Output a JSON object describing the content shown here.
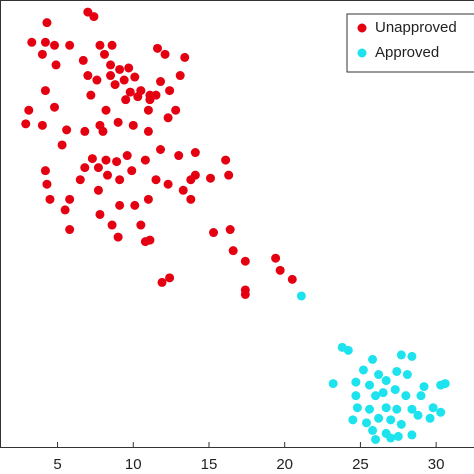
{
  "chart_data": {
    "type": "scatter",
    "xlim": [
      1.2,
      32.5
    ],
    "ylim": [
      0,
      29.6
    ],
    "xticks": [
      5,
      10,
      15,
      20,
      25,
      30
    ],
    "legend": "top right",
    "series": [
      {
        "name": "Unapproved",
        "color": "#e40010",
        "x": [
          4.3,
          7.0,
          7.4,
          3.3,
          4.2,
          4.0,
          4.8,
          5.8,
          7.8,
          8.1,
          8.5,
          9.1,
          9.7,
          11.6,
          12.1,
          13.4,
          13.1,
          12.4,
          12.8,
          11.8,
          11.1,
          10.5,
          9.8,
          9.5,
          8.8,
          8.5,
          9.4,
          10.1,
          10.3,
          11.0,
          8.2,
          7.2,
          7.6,
          7.0,
          6.7,
          4.9,
          4.2,
          4.8,
          2.9,
          4.0,
          5.6,
          5.3,
          6.8,
          7.8,
          9.0,
          10.0,
          11.0,
          12.3,
          11.8,
          13.0,
          14.1,
          16.1,
          16.3,
          15.1,
          13.8,
          13.3,
          12.3,
          11.5,
          10.8,
          9.9,
          9.6,
          9.1,
          8.3,
          7.7,
          6.8,
          7.3,
          8.2,
          8.9,
          6.5,
          7.7,
          9.1,
          10.1,
          11.0,
          7.8,
          8.6,
          10.5,
          5.8,
          5.5,
          4.5,
          4.3,
          4.2,
          5.8,
          9.0,
          10.8,
          11.1,
          15.3,
          16.4,
          16.6,
          17.4,
          19.4,
          19.7,
          20.5,
          17.4,
          17.4,
          12.4,
          11.9,
          14.1,
          13.8,
          11.1,
          8.0,
          3.1,
          11.5,
          8.6
        ],
        "y": [
          28.1,
          28.8,
          28.5,
          26.8,
          26.8,
          26.0,
          26.6,
          26.6,
          26.6,
          26.0,
          25.3,
          25.0,
          25.1,
          26.4,
          26.0,
          25.8,
          24.6,
          23.6,
          22.3,
          24.2,
          23.3,
          23.6,
          23.5,
          23.0,
          24.0,
          24.6,
          24.3,
          24.5,
          23.2,
          22.3,
          22.3,
          23.3,
          24.3,
          24.6,
          25.6,
          25.3,
          23.6,
          22.5,
          21.4,
          21.3,
          21.0,
          20.0,
          20.9,
          21.3,
          21.5,
          21.3,
          20.9,
          21.8,
          19.7,
          19.3,
          19.5,
          19.0,
          18.0,
          17.8,
          17.7,
          17.0,
          17.4,
          17.7,
          19.0,
          18.3,
          19.3,
          17.7,
          18.0,
          18.5,
          18.5,
          19.1,
          19.0,
          18.9,
          17.7,
          17.0,
          16.0,
          16.0,
          16.4,
          15.4,
          14.7,
          14.7,
          16.4,
          15.7,
          16.4,
          17.4,
          18.3,
          14.4,
          13.9,
          13.6,
          13.7,
          14.2,
          14.4,
          13.0,
          12.3,
          12.5,
          11.7,
          11.1,
          10.4,
          10.1,
          11.2,
          10.9,
          18.0,
          16.4,
          23.0,
          20.9,
          22.3,
          23.3,
          26.6
        ]
      },
      {
        "name": "Approved",
        "color": "#1ce3ee",
        "x": [
          21.1,
          23.8,
          24.2,
          25.8,
          27.7,
          28.4,
          25.2,
          26.2,
          27.4,
          28.1,
          26.7,
          24.7,
          23.2,
          25.6,
          27.3,
          29.2,
          30.3,
          30.6,
          24.7,
          26.0,
          26.5,
          28.0,
          29.0,
          24.8,
          25.6,
          26.7,
          27.4,
          28.4,
          29.8,
          30.3,
          24.5,
          25.4,
          26.2,
          27.0,
          27.7,
          28.8,
          29.6,
          25.8,
          26.7,
          27.5,
          28.4,
          26.0,
          27.0
        ],
        "y": [
          10.0,
          6.6,
          6.4,
          5.8,
          6.1,
          6.0,
          5.1,
          4.8,
          5.0,
          4.8,
          4.4,
          4.3,
          4.2,
          4.1,
          3.8,
          4.0,
          4.1,
          4.2,
          3.4,
          3.4,
          3.6,
          3.4,
          3.4,
          2.6,
          2.5,
          2.6,
          2.5,
          2.5,
          2.6,
          2.3,
          1.8,
          1.6,
          1.9,
          1.8,
          1.5,
          2.1,
          1.9,
          1.1,
          0.9,
          0.7,
          0.8,
          0.5,
          0.6
        ]
      }
    ]
  }
}
